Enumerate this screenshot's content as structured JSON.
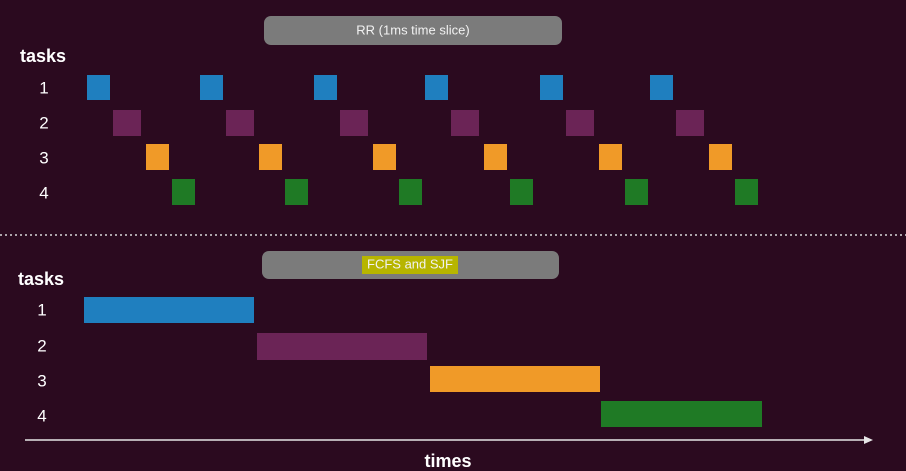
{
  "rr_panel": {
    "title": "RR (1ms time slice)",
    "axis_label": "tasks",
    "task_labels": [
      "1",
      "2",
      "3",
      "4"
    ]
  },
  "fcfs_panel": {
    "title": "FCFS and SJF",
    "axis_label": "tasks",
    "task_labels": [
      "1",
      "2",
      "3",
      "4"
    ]
  },
  "x_axis_label": "times"
}
